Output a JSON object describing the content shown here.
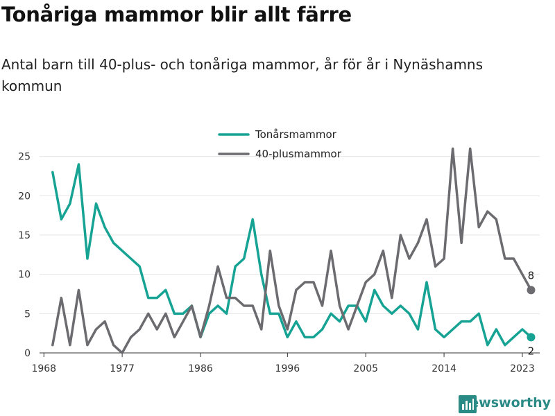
{
  "title": "Tonåriga mammor blir allt färre",
  "subtitle": "Antal barn till 40-plus- och tonåriga mammor, år för år i Nynäshamns kommun",
  "brand": {
    "name": "Newsworthy",
    "icon": "bar-chart-logo-icon"
  },
  "chart_data": {
    "type": "line",
    "x": [
      1969,
      1970,
      1971,
      1972,
      1973,
      1974,
      1975,
      1976,
      1977,
      1978,
      1979,
      1980,
      1981,
      1982,
      1983,
      1984,
      1985,
      1986,
      1987,
      1988,
      1989,
      1990,
      1991,
      1992,
      1993,
      1994,
      1995,
      1996,
      1997,
      1998,
      1999,
      2000,
      2001,
      2002,
      2003,
      2004,
      2005,
      2006,
      2007,
      2008,
      2009,
      2010,
      2011,
      2012,
      2013,
      2014,
      2015,
      2016,
      2017,
      2018,
      2019,
      2020,
      2021,
      2022,
      2023,
      2024
    ],
    "series": [
      {
        "name": "Tonårsmammor",
        "color": "#16a394",
        "values": [
          23,
          17,
          19,
          24,
          12,
          19,
          16,
          14,
          13,
          12,
          11,
          7,
          7,
          8,
          5,
          5,
          6,
          2,
          5,
          6,
          5,
          11,
          12,
          17,
          10,
          5,
          5,
          2,
          4,
          2,
          2,
          3,
          5,
          4,
          6,
          6,
          4,
          8,
          6,
          5,
          6,
          5,
          3,
          9,
          3,
          2,
          3,
          4,
          4,
          5,
          1,
          3,
          1,
          2,
          3,
          2
        ]
      },
      {
        "name": "40-plusmammor",
        "color": "#6b6b70",
        "values": [
          1,
          7,
          1,
          8,
          1,
          3,
          4,
          1,
          0,
          2,
          3,
          5,
          3,
          5,
          2,
          4,
          6,
          2,
          6,
          11,
          7,
          7,
          6,
          6,
          3,
          13,
          6,
          3,
          8,
          9,
          9,
          6,
          13,
          6,
          3,
          6,
          9,
          10,
          13,
          7,
          15,
          12,
          14,
          17,
          11,
          12,
          26,
          14,
          26,
          16,
          18,
          17,
          12,
          12,
          10,
          8
        ]
      }
    ],
    "end_labels": {
      "Tonårsmammor": "2",
      "40-plusmammor": "8"
    },
    "x_ticks": [
      "1968",
      "1977",
      "1986",
      "1996",
      "2005",
      "2014",
      "2023"
    ],
    "y_ticks": [
      "0",
      "5",
      "10",
      "15",
      "20",
      "25"
    ],
    "ylim": [
      0,
      27
    ],
    "xlim": [
      1967.5,
      2025
    ],
    "legend_placement": "top-center",
    "grid": true
  }
}
